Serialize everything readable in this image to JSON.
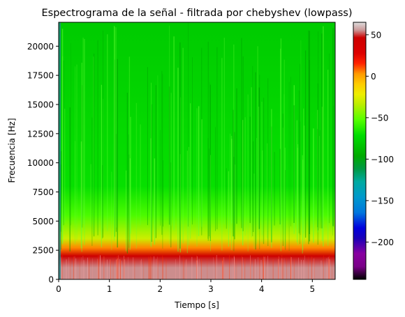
{
  "chart_data": {
    "type": "heatmap",
    "title": "Espectrograma de la señal - filtrada por chebyshev (lowpass)",
    "xlabel": "Tiempo [s]",
    "ylabel": "Frecuencia [Hz]",
    "xlim": [
      0,
      5.45
    ],
    "ylim": [
      0,
      22050
    ],
    "x_ticks": [
      0,
      1,
      2,
      3,
      4,
      5
    ],
    "x_tick_labels": [
      "0",
      "1",
      "2",
      "3",
      "4",
      "5"
    ],
    "y_ticks": [
      0,
      2500,
      5000,
      7500,
      10000,
      12500,
      15000,
      17500,
      20000
    ],
    "y_tick_labels": [
      "0",
      "2500",
      "5000",
      "7500",
      "10000",
      "12500",
      "15000",
      "17500",
      "20000"
    ],
    "colorbar": {
      "colormap": "nipy_spectral",
      "range": [
        -245,
        65
      ],
      "ticks": [
        50,
        0,
        -50,
        -100,
        -150,
        -200
      ],
      "tick_labels": [
        "50",
        "0",
        "−50",
        "−100",
        "−150",
        "−200"
      ]
    },
    "frequency_profile_db": [
      {
        "freq": 0,
        "db": 55
      },
      {
        "freq": 1000,
        "db": 55
      },
      {
        "freq": 2000,
        "db": 45
      },
      {
        "freq": 2700,
        "db": 5
      },
      {
        "freq": 3500,
        "db": -30
      },
      {
        "freq": 5500,
        "db": -55
      },
      {
        "freq": 8000,
        "db": -70
      },
      {
        "freq": 22050,
        "db": -80
      }
    ],
    "colors": {
      "high": "#d40000",
      "mid": "#e6e600",
      "low": "#00cc00",
      "background": "#ffffff"
    }
  }
}
